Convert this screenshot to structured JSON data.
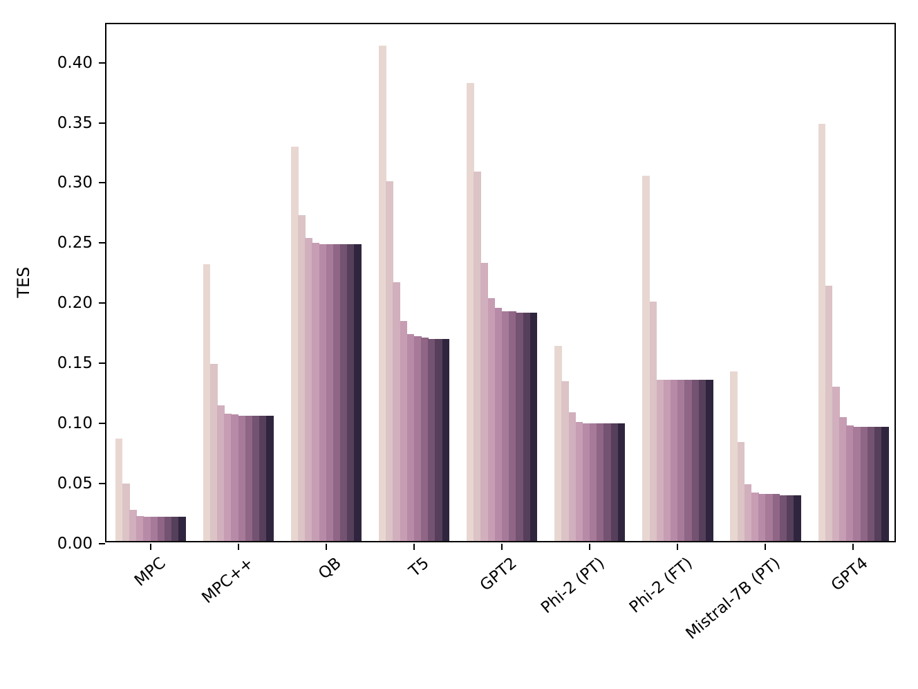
{
  "chart_data": {
    "type": "bar",
    "title": "",
    "xlabel": "",
    "ylabel": "TES",
    "ylim": [
      0,
      0.432
    ],
    "yticks": [
      0.0,
      0.05,
      0.1,
      0.15,
      0.2,
      0.25,
      0.3,
      0.35,
      0.4
    ],
    "grid": false,
    "legend": "none",
    "bars_per_group": 10,
    "palette": [
      "#e8d7d1",
      "#dcc3c6",
      "#d1afbd",
      "#c69db3",
      "#b78ba7",
      "#a67a98",
      "#8f6685",
      "#745271",
      "#553f5a",
      "#30253f"
    ],
    "categories": [
      "MPC",
      "MPC++",
      "QB",
      "T5",
      "GPT2",
      "Phi-2 (PT)",
      "Phi-2 (FT)",
      "Mistral-7B (PT)",
      "GPT4"
    ],
    "groups": [
      {
        "label": "MPC",
        "values": [
          0.085,
          0.048,
          0.026,
          0.021,
          0.02,
          0.02,
          0.02,
          0.02,
          0.02,
          0.02
        ]
      },
      {
        "label": "MPC++",
        "values": [
          0.23,
          0.147,
          0.113,
          0.106,
          0.105,
          0.104,
          0.104,
          0.104,
          0.104,
          0.104
        ]
      },
      {
        "label": "QB",
        "values": [
          0.328,
          0.271,
          0.252,
          0.248,
          0.247,
          0.247,
          0.247,
          0.247,
          0.247,
          0.247
        ]
      },
      {
        "label": "T5",
        "values": [
          0.412,
          0.299,
          0.215,
          0.183,
          0.172,
          0.17,
          0.169,
          0.168,
          0.168,
          0.168
        ]
      },
      {
        "label": "GPT2",
        "values": [
          0.381,
          0.307,
          0.231,
          0.202,
          0.194,
          0.191,
          0.191,
          0.19,
          0.19,
          0.19
        ]
      },
      {
        "label": "Phi-2 (PT)",
        "values": [
          0.162,
          0.133,
          0.107,
          0.099,
          0.098,
          0.098,
          0.098,
          0.098,
          0.098,
          0.098
        ]
      },
      {
        "label": "Phi-2 (FT)",
        "values": [
          0.304,
          0.199,
          0.134,
          0.134,
          0.134,
          0.134,
          0.134,
          0.134,
          0.134,
          0.134
        ]
      },
      {
        "label": "Mistral-7B (PT)",
        "values": [
          0.141,
          0.082,
          0.047,
          0.04,
          0.039,
          0.039,
          0.039,
          0.038,
          0.038,
          0.038
        ]
      },
      {
        "label": "GPT4",
        "values": [
          0.347,
          0.212,
          0.128,
          0.103,
          0.096,
          0.095,
          0.095,
          0.095,
          0.095,
          0.095
        ]
      }
    ]
  }
}
